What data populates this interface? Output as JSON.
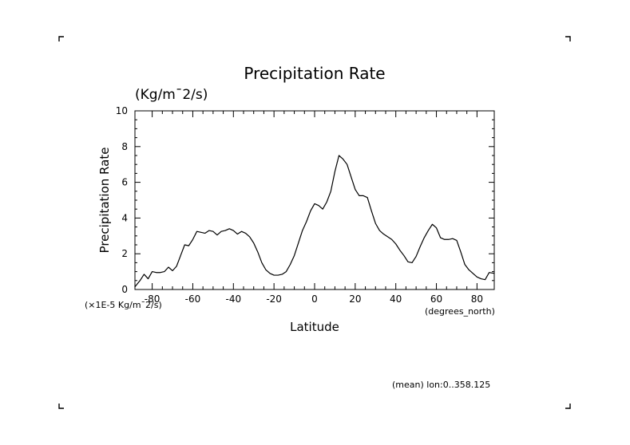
{
  "colors": {
    "background": "#ffffff",
    "ink": "#000000"
  },
  "chart_data": {
    "type": "line",
    "title": "Precipitation Rate",
    "subtitle": "(Kg/m¯2/s)",
    "xlabel": "Latitude",
    "ylabel": "Precipitation Rate",
    "x_units": "(degrees_north)",
    "y_scale_note": "(×1E-5 Kg/m¯2/s)",
    "footer_note": "(mean) lon:0..358.125",
    "xlim": [
      -88.5,
      88.5
    ],
    "ylim": [
      0,
      10
    ],
    "x_ticks": [
      -80,
      -60,
      -40,
      -20,
      0,
      20,
      40,
      60,
      80
    ],
    "x_tick_labels": [
      "-80",
      "-60",
      "-40",
      "-20",
      "0",
      "20",
      "40",
      "60",
      "80"
    ],
    "y_ticks": [
      0,
      2,
      4,
      6,
      8,
      10
    ],
    "y_tick_labels": [
      "0",
      "2",
      "4",
      "6",
      "8",
      "10"
    ],
    "grid": false,
    "series": [
      {
        "name": "Precipitation Rate",
        "x": [
          -88.5,
          -86,
          -84,
          -82,
          -80,
          -78,
          -76,
          -74,
          -72,
          -70,
          -68,
          -66,
          -64,
          -62,
          -60,
          -58,
          -56,
          -54,
          -52,
          -50,
          -48,
          -46,
          -44,
          -42,
          -40,
          -38,
          -36,
          -34,
          -32,
          -30,
          -28,
          -26,
          -24,
          -22,
          -20,
          -18,
          -16,
          -14,
          -12,
          -10,
          -8,
          -6,
          -4,
          -2,
          0,
          2,
          4,
          6,
          8,
          10,
          12,
          14,
          16,
          18,
          20,
          22,
          24,
          26,
          28,
          30,
          32,
          34,
          36,
          38,
          40,
          42,
          44,
          46,
          48,
          50,
          52,
          54,
          56,
          58,
          60,
          62,
          64,
          66,
          68,
          70,
          72,
          74,
          76,
          78,
          80,
          82,
          84,
          86,
          88.5
        ],
        "values": [
          0.15,
          0.5,
          0.85,
          0.6,
          1.0,
          0.95,
          0.95,
          1.0,
          1.25,
          1.05,
          1.3,
          1.9,
          2.5,
          2.45,
          2.8,
          3.25,
          3.2,
          3.15,
          3.3,
          3.25,
          3.05,
          3.25,
          3.3,
          3.4,
          3.3,
          3.1,
          3.25,
          3.15,
          2.95,
          2.6,
          2.1,
          1.5,
          1.1,
          0.9,
          0.8,
          0.8,
          0.85,
          1.0,
          1.4,
          1.9,
          2.6,
          3.3,
          3.8,
          4.4,
          4.8,
          4.7,
          4.5,
          4.9,
          5.5,
          6.6,
          7.5,
          7.3,
          7.0,
          6.3,
          5.6,
          5.25,
          5.25,
          5.15,
          4.4,
          3.7,
          3.3,
          3.1,
          2.95,
          2.8,
          2.55,
          2.2,
          1.9,
          1.55,
          1.5,
          1.85,
          2.4,
          2.9,
          3.3,
          3.65,
          3.45,
          2.9,
          2.8,
          2.8,
          2.85,
          2.75,
          2.1,
          1.4,
          1.1,
          0.9,
          0.7,
          0.6,
          0.55,
          0.95,
          0.9
        ]
      }
    ]
  }
}
